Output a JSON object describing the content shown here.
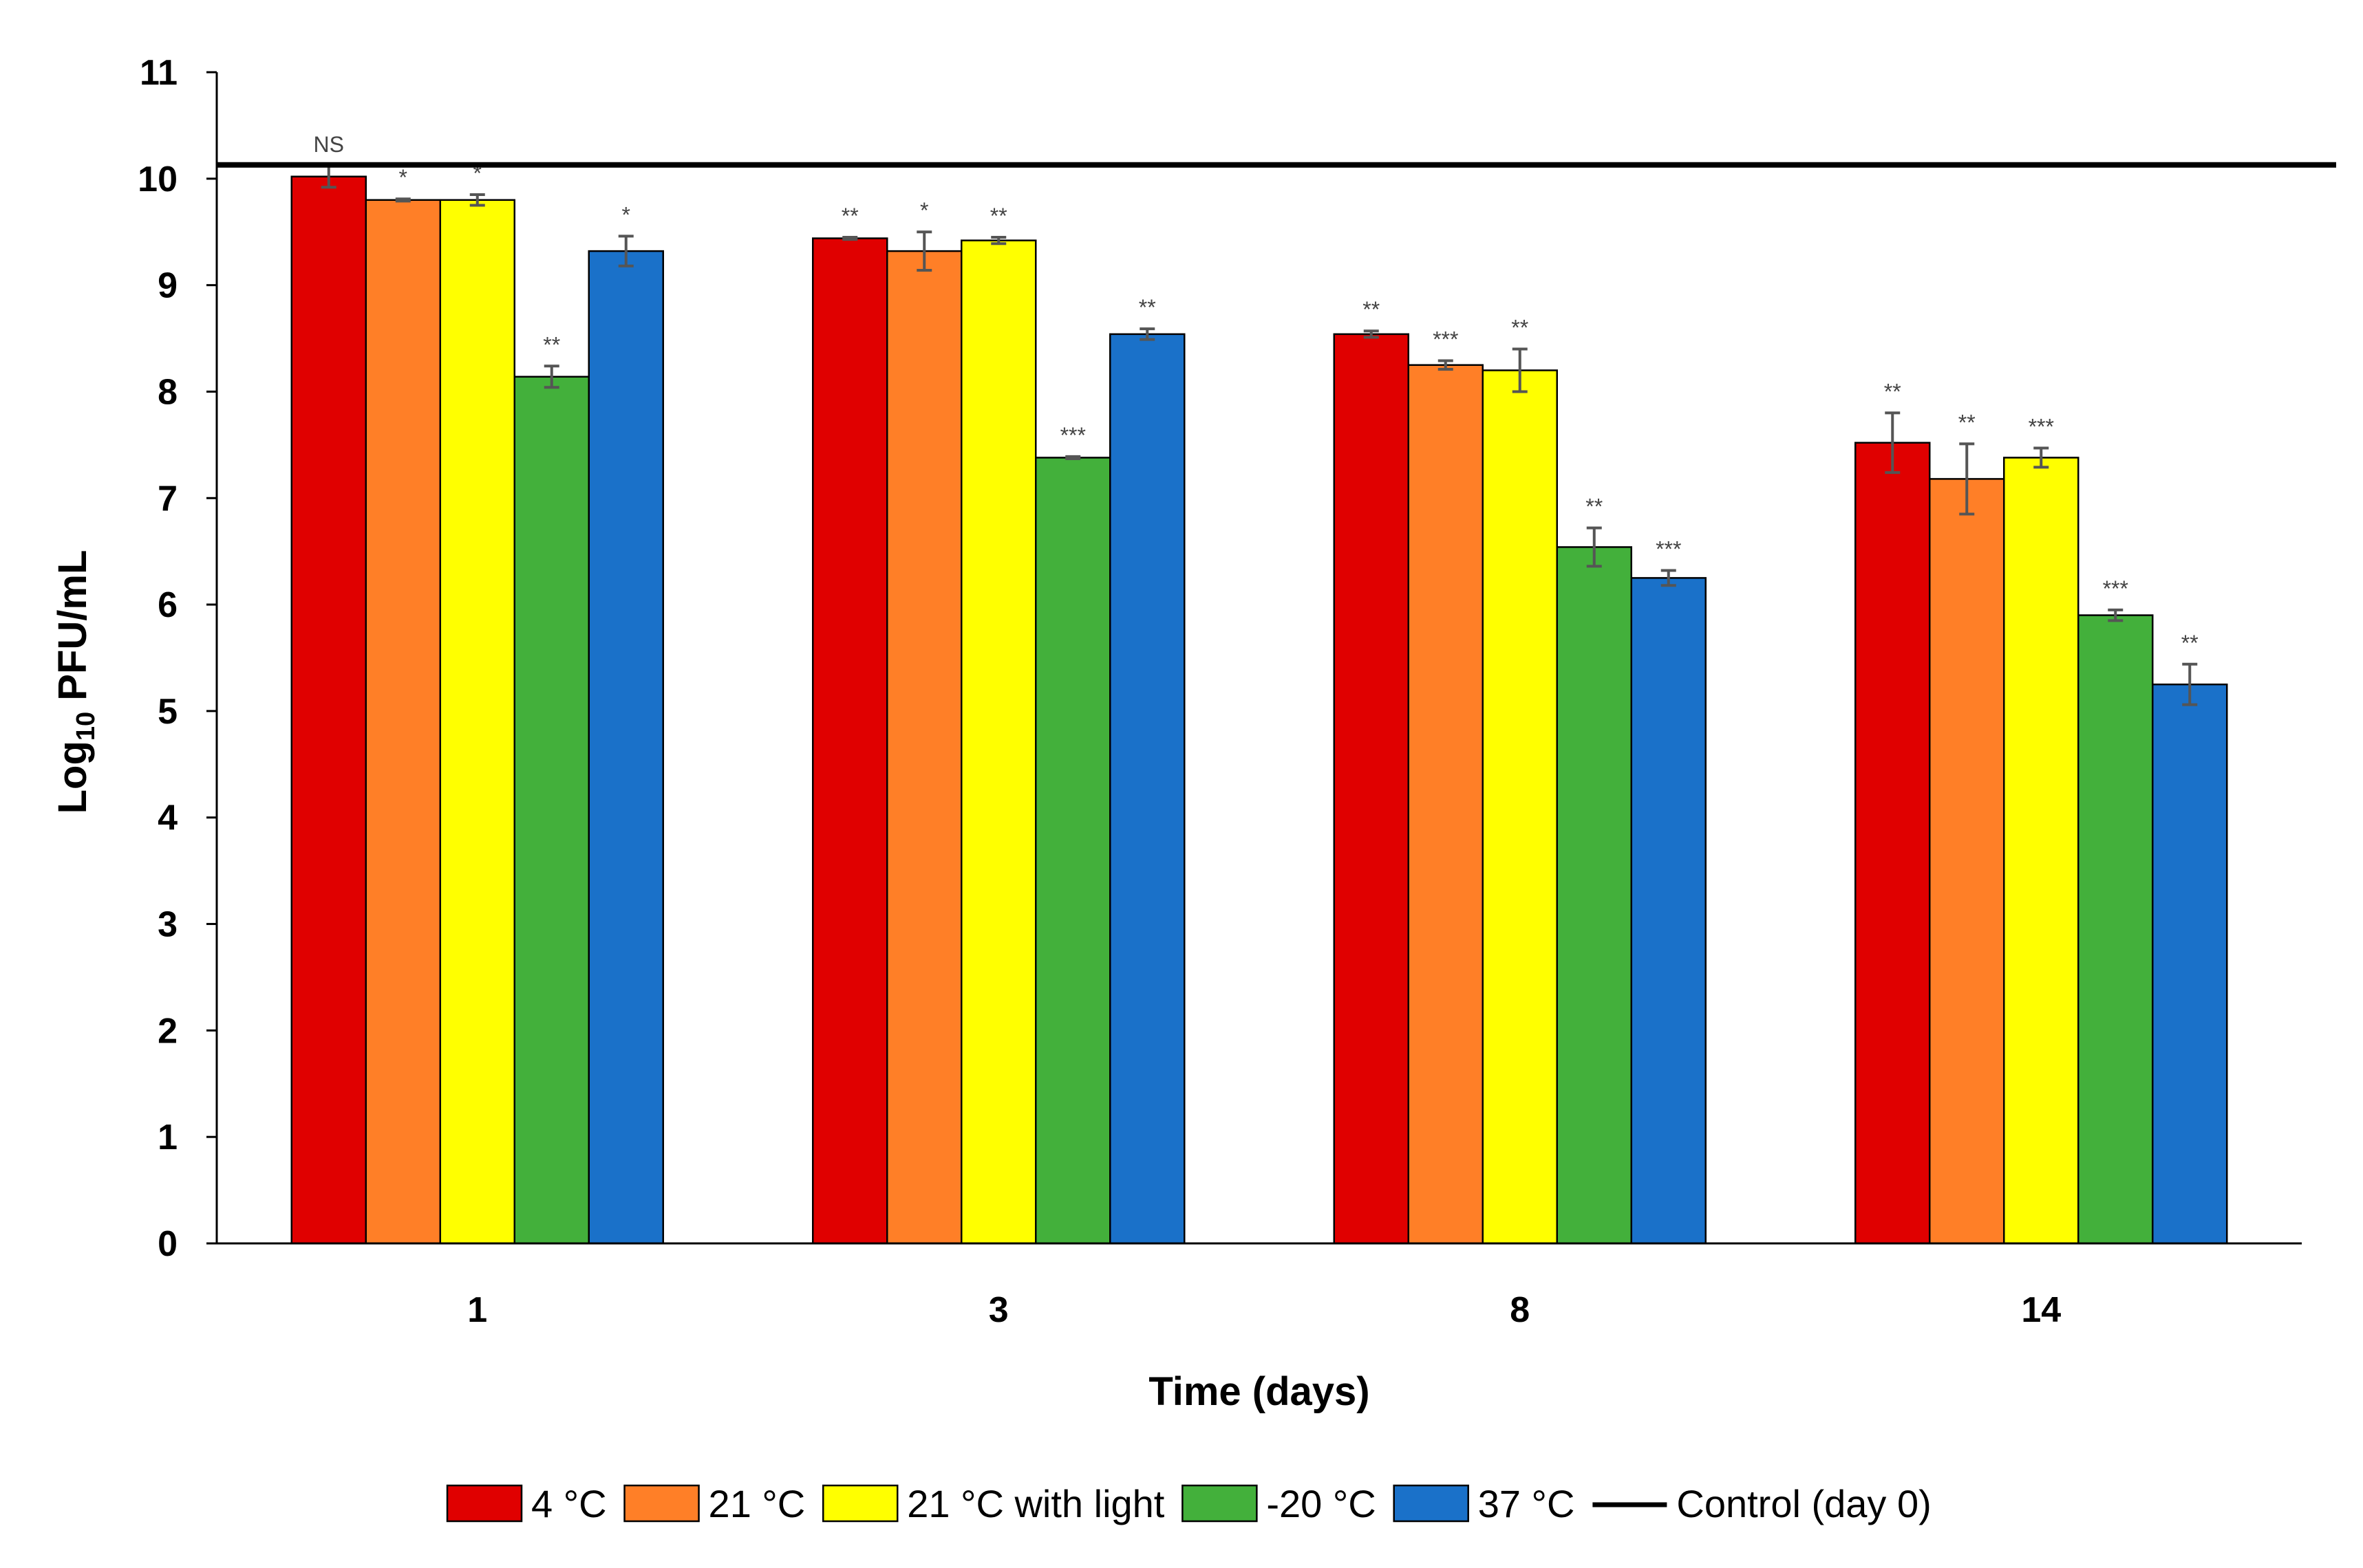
{
  "chart_data": {
    "type": "bar",
    "title": "",
    "xlabel": "Time (days)",
    "ylabel": {
      "main": "Log",
      "sub": "10",
      "rest": " PFU/mL"
    },
    "ylim": [
      0,
      11
    ],
    "yticks": [
      0,
      1,
      2,
      3,
      4,
      5,
      6,
      7,
      8,
      9,
      10,
      11
    ],
    "categories": [
      "1",
      "3",
      "8",
      "14"
    ],
    "grid": false,
    "legend_position": "bottom",
    "series": [
      {
        "name": "4 °C",
        "color": "#e00000",
        "values": [
          10.02,
          9.44,
          8.54,
          7.52
        ],
        "errors": [
          0.1,
          0.01,
          0.03,
          0.28
        ],
        "sig": [
          "NS",
          "**",
          "**",
          "**"
        ]
      },
      {
        "name": "21 °C",
        "color": "#ff7f27",
        "values": [
          9.8,
          9.32,
          8.25,
          7.18
        ],
        "errors": [
          0.01,
          0.18,
          0.04,
          0.33
        ],
        "sig": [
          "*",
          "*",
          "***",
          "**"
        ]
      },
      {
        "name": "21 °C with light",
        "color": "#ffff00",
        "values": [
          9.8,
          9.42,
          8.2,
          7.38
        ],
        "errors": [
          0.05,
          0.03,
          0.2,
          0.09
        ],
        "sig": [
          "*",
          "**",
          "**",
          "***"
        ]
      },
      {
        "name": "-20 °C",
        "color": "#43b03b",
        "values": [
          8.14,
          7.38,
          6.54,
          5.9
        ],
        "errors": [
          0.1,
          0.01,
          0.18,
          0.05
        ],
        "sig": [
          "**",
          "***",
          "**",
          "***"
        ]
      },
      {
        "name": "37 °C",
        "color": "#1a71c9",
        "values": [
          9.32,
          8.54,
          6.25,
          5.25
        ],
        "errors": [
          0.14,
          0.05,
          0.07,
          0.19
        ],
        "sig": [
          "*",
          "**",
          "***",
          "**"
        ]
      }
    ],
    "control": {
      "name": "Control (day 0)",
      "value": 10.13,
      "color": "#000000"
    }
  }
}
